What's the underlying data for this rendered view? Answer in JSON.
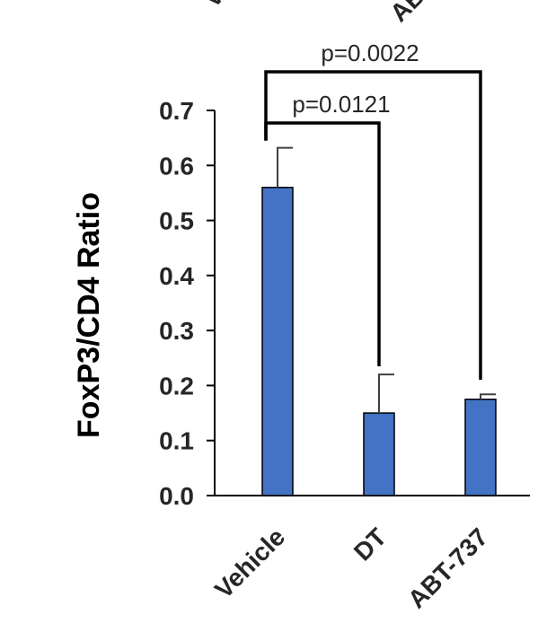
{
  "chart_data": {
    "type": "bar",
    "categories": [
      "Vehicle",
      "DT",
      "ABT-737"
    ],
    "values": [
      0.56,
      0.15,
      0.175
    ],
    "error_upper": [
      0.632,
      0.22,
      0.184
    ],
    "ylabel": "FoxP3/CD4 Ratio",
    "ylim": [
      0,
      0.7
    ],
    "yticks": [
      "0.0",
      "0.1",
      "0.2",
      "0.3",
      "0.4",
      "0.5",
      "0.6",
      "0.7"
    ],
    "bar_color": "#4472c4",
    "annotations": [
      {
        "text": "p=0.0121",
        "from": "Vehicle",
        "to": "DT"
      },
      {
        "text": "p=0.0022",
        "from": "Vehicle",
        "to": "ABT-737"
      }
    ],
    "top_cut_labels": [
      "V",
      "AB"
    ]
  }
}
